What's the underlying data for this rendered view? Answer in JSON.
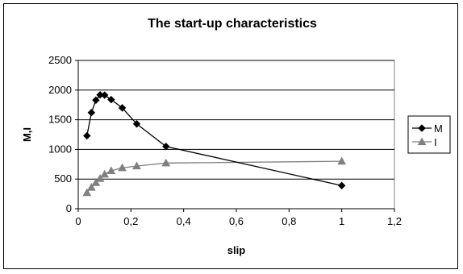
{
  "chart_data": {
    "type": "line",
    "title": "The start-up characteristics",
    "xlabel": "slip",
    "ylabel": "M,I",
    "xlim": [
      0,
      1.2
    ],
    "ylim": [
      0,
      2500
    ],
    "x_ticks": [
      "0",
      "0,2",
      "0,4",
      "0,6",
      "0,8",
      "1",
      "1,2"
    ],
    "y_ticks": [
      "0",
      "500",
      "1000",
      "1500",
      "2000",
      "2500"
    ],
    "grid": "horizontal",
    "legend_position": "right",
    "series": [
      {
        "name": "M",
        "marker": "diamond",
        "color": "#000000",
        "x": [
          0.033,
          0.05,
          0.067,
          0.083,
          0.1,
          0.125,
          0.167,
          0.222,
          0.333,
          1.0
        ],
        "y": [
          1230,
          1620,
          1830,
          1920,
          1915,
          1840,
          1700,
          1430,
          1050,
          390
        ]
      },
      {
        "name": "I",
        "marker": "triangle",
        "color": "#808080",
        "x": [
          0.033,
          0.05,
          0.067,
          0.083,
          0.1,
          0.125,
          0.167,
          0.222,
          0.333,
          1.0
        ],
        "y": [
          270,
          360,
          440,
          510,
          580,
          640,
          690,
          720,
          770,
          800
        ]
      }
    ]
  }
}
